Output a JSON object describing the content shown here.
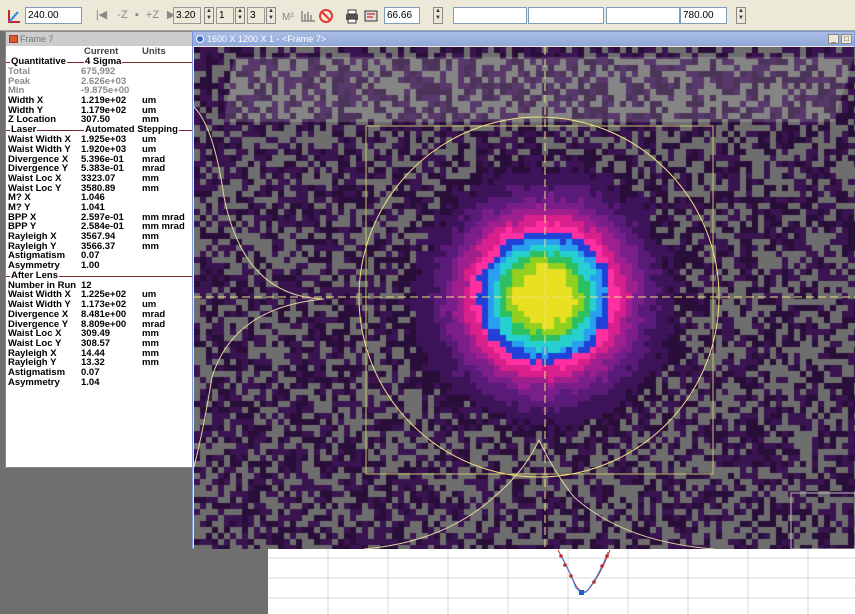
{
  "toolbar": {
    "field_value": "240.00",
    "magnification": "3.20",
    "spin1": "1",
    "spin2": "3",
    "zoom_field": "66.66",
    "right_field": "780.00"
  },
  "results": {
    "window_title": "Frame 7",
    "col_current": "Current",
    "col_units": "Units",
    "sections": [
      {
        "left": "Quantitative",
        "right": "4 Sigma"
      },
      {
        "left": "Laser",
        "right": "Automated Stepping"
      },
      {
        "left": "After Lens",
        "right": ""
      }
    ],
    "quant_rows": [
      {
        "label": "Total",
        "value": "675,992",
        "unit": "",
        "gray": true
      },
      {
        "label": "Peak",
        "value": "2.626e+03",
        "unit": "",
        "gray": true
      },
      {
        "label": "Min",
        "value": "-9.875e+00",
        "unit": "",
        "gray": true
      },
      {
        "label": "Width X",
        "value": "1.219e+02",
        "unit": "um",
        "gray": false
      },
      {
        "label": "Width Y",
        "value": "1.179e+02",
        "unit": "um",
        "gray": false
      },
      {
        "label": "Z Location",
        "value": "307.50",
        "unit": "mm",
        "gray": false
      }
    ],
    "laser_rows": [
      {
        "label": "Waist Width X",
        "value": "1.925e+03",
        "unit": "um"
      },
      {
        "label": "Waist Width Y",
        "value": "1.920e+03",
        "unit": "um"
      },
      {
        "label": "Divergence X",
        "value": "5.396e-01",
        "unit": "mrad"
      },
      {
        "label": "Divergence Y",
        "value": "5.383e-01",
        "unit": "mrad"
      },
      {
        "label": "Waist Loc X",
        "value": "3323.07",
        "unit": "mm"
      },
      {
        "label": "Waist Loc Y",
        "value": "3580.89",
        "unit": "mm"
      },
      {
        "label": "M? X",
        "value": "1.046",
        "unit": ""
      },
      {
        "label": "M? Y",
        "value": "1.041",
        "unit": ""
      },
      {
        "label": "BPP X",
        "value": "2.597e-01",
        "unit": "mm mrad"
      },
      {
        "label": "BPP Y",
        "value": "2.584e-01",
        "unit": "mm mrad"
      },
      {
        "label": "Rayleigh X",
        "value": "3567.94",
        "unit": "mm"
      },
      {
        "label": "Rayleigh Y",
        "value": "3566.37",
        "unit": "mm"
      },
      {
        "label": "Astigmatism",
        "value": "0.07",
        "unit": ""
      },
      {
        "label": "Asymmetry",
        "value": "1.00",
        "unit": ""
      }
    ],
    "lens_rows": [
      {
        "label": "Number in Run",
        "value": "12",
        "unit": ""
      },
      {
        "label": "Waist Width X",
        "value": "1.225e+02",
        "unit": "um"
      },
      {
        "label": "Waist Width Y",
        "value": "1.173e+02",
        "unit": "um"
      },
      {
        "label": "Divergence X",
        "value": "8.481e+00",
        "unit": "mrad"
      },
      {
        "label": "Divergence Y",
        "value": "8.809e+00",
        "unit": "mrad"
      },
      {
        "label": "Waist Loc X",
        "value": "309.49",
        "unit": "mm"
      },
      {
        "label": "Waist Loc Y",
        "value": "308.57",
        "unit": "mm"
      },
      {
        "label": "Rayleigh X",
        "value": "14.44",
        "unit": "mm"
      },
      {
        "label": "Rayleigh Y",
        "value": "13.32",
        "unit": "mm"
      },
      {
        "label": "Astigmatism",
        "value": "0.07",
        "unit": ""
      },
      {
        "label": "Asymmetry",
        "value": "1.04",
        "unit": ""
      }
    ]
  },
  "beam_window": {
    "title": "1600 X 1200 X 1 - <Frame 7>",
    "palette": [
      "#2a0e3a",
      "#3d1359",
      "#5a1a78",
      "#7a1f8a",
      "#a01f8e",
      "#d8208c",
      "#ff2fa0",
      "#2040d8",
      "#2a9ff0",
      "#26d0d0",
      "#2ec060",
      "#8fd020",
      "#e8e020"
    ],
    "crosshair_color": "#f0e080"
  }
}
